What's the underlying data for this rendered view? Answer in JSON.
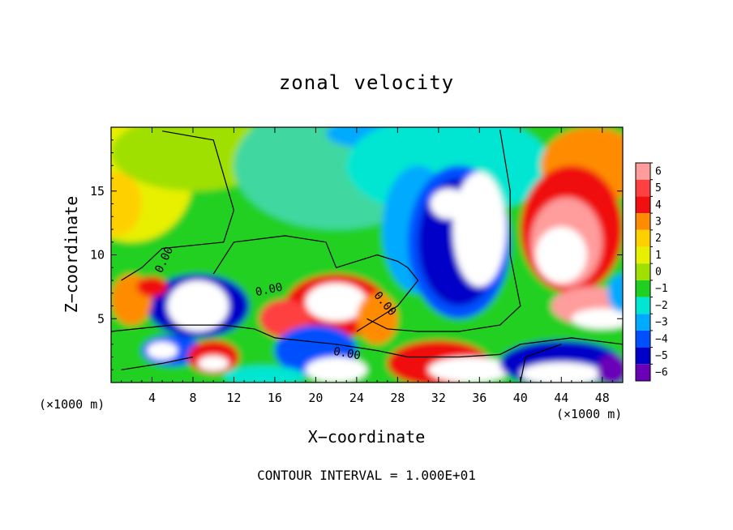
{
  "chart_data": {
    "type": "heatmap",
    "title": "zonal velocity",
    "xlabel": "X−coordinate",
    "ylabel": "Z−coordinate",
    "x_unit_left": "(×1000 m)",
    "x_unit_right": "(×1000 m)",
    "footer": "CONTOUR INTERVAL = 1.000E+01",
    "xlim": [
      0,
      50
    ],
    "ylim": [
      0,
      20
    ],
    "xticks": [
      4,
      8,
      12,
      16,
      20,
      24,
      28,
      32,
      36,
      40,
      44,
      48
    ],
    "xtick_labels": [
      "4",
      "8",
      "12",
      "16",
      "20",
      "24",
      "28",
      "32",
      "36",
      "40",
      "44",
      "48"
    ],
    "yticks": [
      5,
      10,
      15
    ],
    "ytick_labels": [
      "5",
      "10",
      "15"
    ],
    "colorbar": {
      "levels": [
        6,
        5,
        4,
        3,
        2,
        1,
        0,
        -1,
        -2,
        -3,
        -4,
        -5,
        -6
      ],
      "labels": [
        "6",
        "5",
        "4",
        "3",
        "2",
        "1",
        "0",
        "−1",
        "−2",
        "−3",
        "−4",
        "−5",
        "−6"
      ],
      "colors": [
        "#ff9c9c",
        "#ff4040",
        "#f01010",
        "#ff8c00",
        "#ffd000",
        "#e8f000",
        "#a0e000",
        "#20d020",
        "#00e6d2",
        "#00aaff",
        "#0050ff",
        "#0000c8",
        "#6a00b8"
      ],
      "below_color": "#7800c0",
      "above_color": "#ffffff"
    },
    "contour_labels": [
      "0.00",
      "0.00",
      "0.00",
      "0.00"
    ]
  }
}
